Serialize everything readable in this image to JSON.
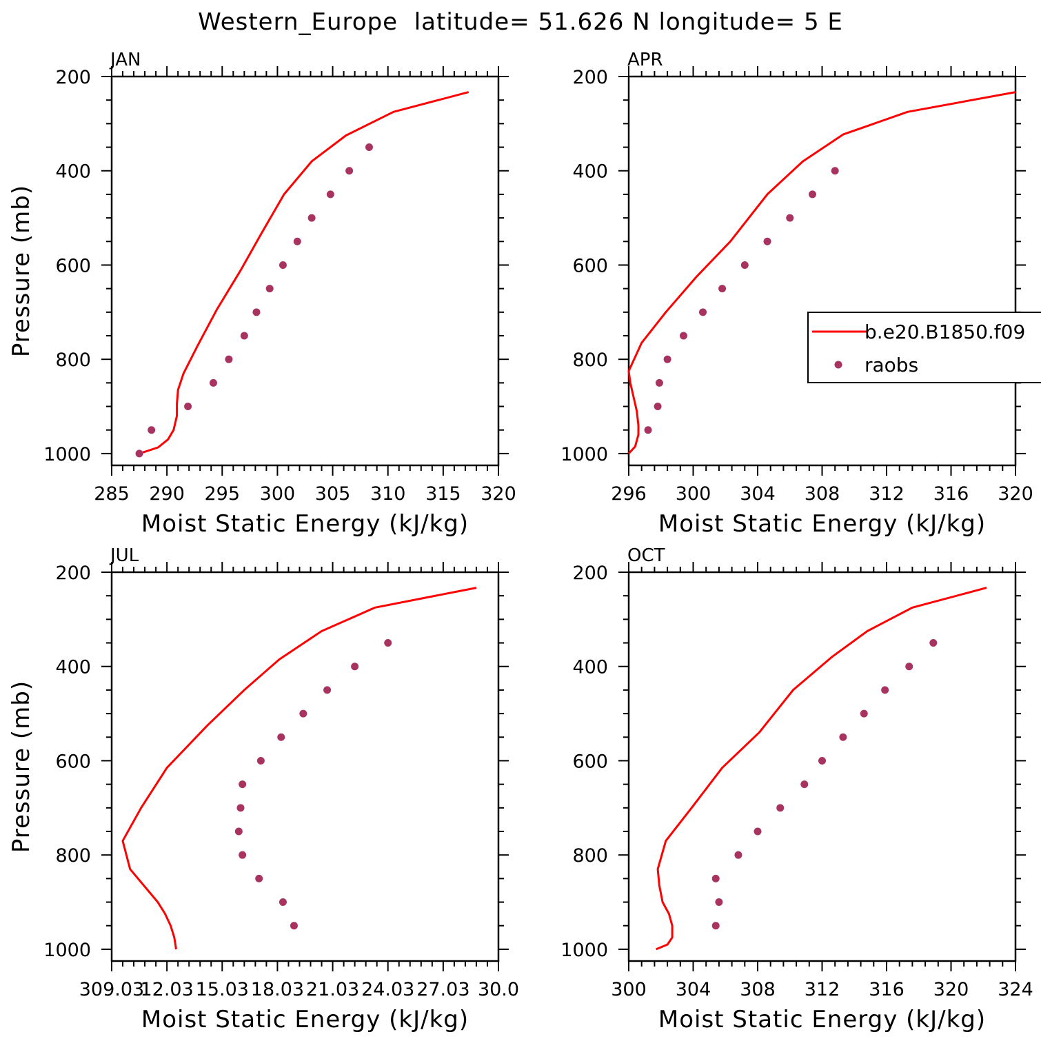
{
  "title": "Western_Europe  latitude= 51.626 N longitude= 5 E",
  "colors": {
    "model": "#ff0000",
    "obs": "#a83360",
    "axis": "#000000"
  },
  "legend": {
    "model_label": "b.e20.B1850.f09",
    "obs_label": "raobs",
    "placement": "right-middle of APR panel"
  },
  "chart_data": [
    {
      "type": "line",
      "panel": "JAN",
      "xlabel": "Moist Static Energy (kJ/kg)",
      "ylabel": "Pressure (mb)",
      "xlim": [
        285,
        320
      ],
      "ylim": [
        200,
        1025
      ],
      "y_reversed": true,
      "xticks": [
        285,
        290,
        295,
        300,
        305,
        310,
        315,
        320
      ],
      "xtick_labels": [
        "285",
        "290",
        "295",
        "300",
        "305",
        "310",
        "315",
        "320"
      ],
      "yticks": [
        200,
        400,
        600,
        800,
        1000
      ],
      "yticks_minor": [
        250,
        300,
        350,
        450,
        500,
        550,
        650,
        700,
        750,
        850,
        900,
        950
      ],
      "series": [
        {
          "name": "b.e20.B1850.f09",
          "kind": "line",
          "points": [
            [
              287.5,
              1000
            ],
            [
              289.2,
              987
            ],
            [
              290.1,
              970
            ],
            [
              290.6,
              950
            ],
            [
              290.9,
              920
            ],
            [
              290.9,
              895
            ],
            [
              291.0,
              865
            ],
            [
              291.5,
              830
            ],
            [
              292.8,
              770
            ],
            [
              294.5,
              695
            ],
            [
              296.7,
              610
            ],
            [
              298.5,
              535
            ],
            [
              300.6,
              450
            ],
            [
              303.1,
              380
            ],
            [
              306.2,
              325
            ],
            [
              310.5,
              275
            ],
            [
              317.3,
              233
            ]
          ]
        },
        {
          "name": "raobs",
          "kind": "scatter",
          "points": [
            [
              287.5,
              1000
            ],
            [
              288.6,
              950
            ],
            [
              291.9,
              900
            ],
            [
              294.2,
              850
            ],
            [
              295.6,
              800
            ],
            [
              297.0,
              750
            ],
            [
              298.1,
              700
            ],
            [
              299.3,
              650
            ],
            [
              300.5,
              600
            ],
            [
              301.8,
              550
            ],
            [
              303.1,
              500
            ],
            [
              304.8,
              450
            ],
            [
              306.5,
              400
            ],
            [
              308.3,
              350
            ]
          ]
        }
      ]
    },
    {
      "type": "line",
      "panel": "APR",
      "xlabel": "Moist Static Energy (kJ/kg)",
      "ylabel": "",
      "xlim": [
        296,
        320
      ],
      "ylim": [
        200,
        1025
      ],
      "y_reversed": true,
      "xticks": [
        296,
        300,
        304,
        308,
        312,
        316,
        320
      ],
      "xtick_labels": [
        "296",
        "300",
        "304",
        "308",
        "312",
        "316",
        "320"
      ],
      "yticks": [
        200,
        400,
        600,
        800,
        1000
      ],
      "yticks_minor": [
        250,
        300,
        350,
        450,
        500,
        550,
        650,
        700,
        750,
        850,
        900,
        950
      ],
      "series": [
        {
          "name": "b.e20.B1850.f09",
          "kind": "line",
          "points": [
            [
              296.0,
              1000
            ],
            [
              296.4,
              985
            ],
            [
              296.6,
              960
            ],
            [
              296.6,
              940
            ],
            [
              296.5,
              910
            ],
            [
              296.3,
              880
            ],
            [
              296.1,
              850
            ],
            [
              296.0,
              825
            ],
            [
              296.8,
              765
            ],
            [
              298.3,
              700
            ],
            [
              300.2,
              625
            ],
            [
              302.3,
              550
            ],
            [
              304.6,
              450
            ],
            [
              306.8,
              380
            ],
            [
              309.3,
              323
            ],
            [
              313.3,
              275
            ],
            [
              320.0,
              233
            ]
          ]
        },
        {
          "name": "raobs",
          "kind": "scatter",
          "points": [
            [
              297.2,
              950
            ],
            [
              297.8,
              900
            ],
            [
              297.9,
              850
            ],
            [
              298.4,
              800
            ],
            [
              299.4,
              750
            ],
            [
              300.6,
              700
            ],
            [
              301.8,
              650
            ],
            [
              303.2,
              600
            ],
            [
              304.6,
              550
            ],
            [
              306.0,
              500
            ],
            [
              307.4,
              450
            ],
            [
              308.8,
              400
            ]
          ]
        }
      ]
    },
    {
      "type": "line",
      "panel": "JUL",
      "xlabel": "Moist Static Energy (kJ/kg)",
      "ylabel": "Pressure (mb)",
      "xlim": [
        309.0,
        330.0
      ],
      "ylim": [
        200,
        1025
      ],
      "y_reversed": true,
      "xticks": [
        309.0,
        312.0,
        315.0,
        318.0,
        321.0,
        324.0,
        327.0,
        330.0
      ],
      "xtick_labels": [
        "309.03",
        "12.03",
        "15.03",
        "18.03",
        "21.03",
        "24.03",
        "27.03",
        "30.0"
      ],
      "yticks": [
        200,
        400,
        600,
        800,
        1000
      ],
      "yticks_minor": [
        250,
        300,
        350,
        450,
        500,
        550,
        650,
        700,
        750,
        850,
        900,
        950
      ],
      "series": [
        {
          "name": "b.e20.B1850.f09",
          "kind": "line",
          "points": [
            [
              312.5,
              1000
            ],
            [
              312.4,
              975
            ],
            [
              312.2,
              950
            ],
            [
              311.9,
              925
            ],
            [
              311.5,
              900
            ],
            [
              310.0,
              830
            ],
            [
              309.6,
              770
            ],
            [
              310.6,
              700
            ],
            [
              312.0,
              615
            ],
            [
              314.2,
              525
            ],
            [
              316.2,
              450
            ],
            [
              318.1,
              385
            ],
            [
              320.4,
              325
            ],
            [
              323.3,
              275
            ],
            [
              328.8,
              233
            ]
          ]
        },
        {
          "name": "raobs",
          "kind": "scatter",
          "points": [
            [
              318.9,
              950
            ],
            [
              318.3,
              900
            ],
            [
              317.0,
              850
            ],
            [
              316.1,
              800
            ],
            [
              315.9,
              750
            ],
            [
              316.0,
              700
            ],
            [
              316.1,
              650
            ],
            [
              317.1,
              600
            ],
            [
              318.2,
              550
            ],
            [
              319.4,
              500
            ],
            [
              320.7,
              450
            ],
            [
              322.2,
              400
            ],
            [
              324.0,
              350
            ]
          ]
        }
      ]
    },
    {
      "type": "line",
      "panel": "OCT",
      "xlabel": "Moist Static Energy (kJ/kg)",
      "ylabel": "",
      "xlim": [
        300,
        324
      ],
      "ylim": [
        200,
        1025
      ],
      "y_reversed": true,
      "xticks": [
        300,
        304,
        308,
        312,
        316,
        320,
        324
      ],
      "xtick_labels": [
        "300",
        "304",
        "308",
        "312",
        "316",
        "320",
        "324"
      ],
      "yticks": [
        200,
        400,
        600,
        800,
        1000
      ],
      "yticks_minor": [
        250,
        300,
        350,
        450,
        500,
        550,
        650,
        700,
        750,
        850,
        900,
        950
      ],
      "series": [
        {
          "name": "b.e20.B1850.f09",
          "kind": "line",
          "points": [
            [
              301.7,
              1000
            ],
            [
              302.4,
              990
            ],
            [
              302.7,
              975
            ],
            [
              302.7,
              950
            ],
            [
              302.5,
              925
            ],
            [
              302.1,
              900
            ],
            [
              301.9,
              865
            ],
            [
              301.8,
              830
            ],
            [
              302.3,
              770
            ],
            [
              303.9,
              700
            ],
            [
              305.8,
              615
            ],
            [
              308.1,
              540
            ],
            [
              310.2,
              450
            ],
            [
              312.6,
              380
            ],
            [
              314.8,
              325
            ],
            [
              317.6,
              275
            ],
            [
              322.2,
              233
            ]
          ]
        },
        {
          "name": "raobs",
          "kind": "scatter",
          "points": [
            [
              305.4,
              950
            ],
            [
              305.6,
              900
            ],
            [
              305.4,
              850
            ],
            [
              306.8,
              800
            ],
            [
              308.0,
              750
            ],
            [
              309.4,
              700
            ],
            [
              310.9,
              650
            ],
            [
              312.0,
              600
            ],
            [
              313.3,
              550
            ],
            [
              314.6,
              500
            ],
            [
              315.9,
              450
            ],
            [
              317.4,
              400
            ],
            [
              318.9,
              350
            ]
          ]
        }
      ]
    }
  ]
}
